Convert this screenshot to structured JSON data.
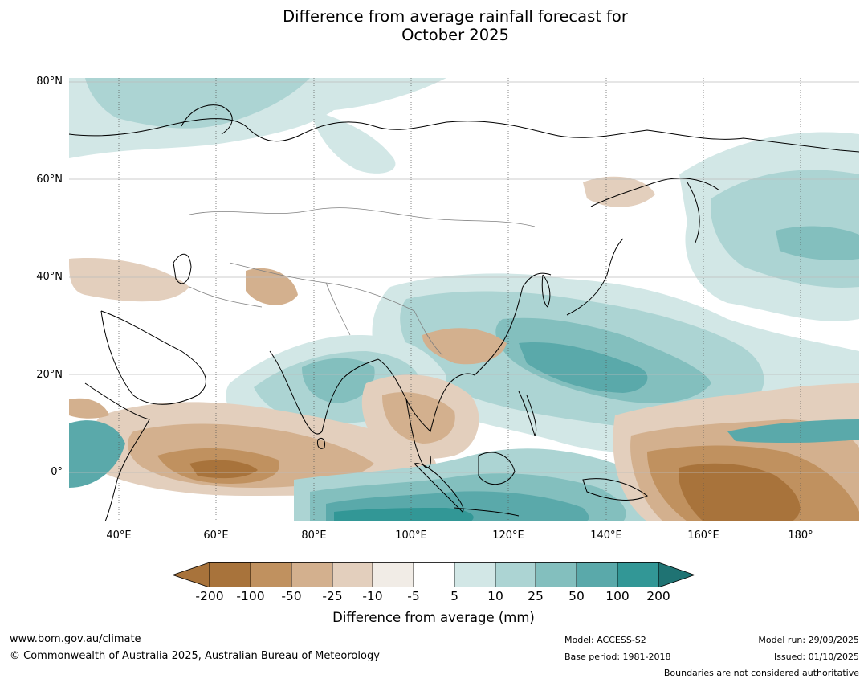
{
  "title_line1": "Difference from average rainfall forecast for",
  "title_line2": "October 2025",
  "map": {
    "lat_labels": [
      "80°N",
      "60°N",
      "40°N",
      "20°N",
      "0°"
    ],
    "lon_labels": [
      "40°E",
      "60°E",
      "80°E",
      "100°E",
      "120°E",
      "140°E",
      "160°E",
      "180°"
    ],
    "lon_range_deg": [
      30,
      192
    ],
    "lat_range_deg": [
      -10,
      81
    ],
    "palette": {
      "dry_extreme": "#8c5a2a",
      "dry_200": "#a8733b",
      "dry_100": "#c0915f",
      "dry_50": "#d3b08e",
      "dry_25": "#e3cfbd",
      "dry_10": "#f1ece6",
      "neutral": "#ffffff",
      "wet_10": "#d2e7e6",
      "wet_25": "#acd4d3",
      "wet_50": "#83bfbe",
      "wet_100": "#5aa9aa",
      "wet_200": "#329796",
      "wet_extreme": "#1f7373",
      "coast": "#000000",
      "border": "#808080",
      "grid": "#bdbdbd"
    }
  },
  "colorbar": {
    "ticks": [
      "-200",
      "-100",
      "-50",
      "-25",
      "-10",
      "-5",
      "5",
      "10",
      "25",
      "50",
      "100",
      "200"
    ],
    "label": "Difference from average (mm)"
  },
  "footer": {
    "url": "www.bom.gov.au/climate",
    "copyright": "© Commonwealth of Australia 2025, Australian Bureau of Meteorology",
    "model": "Model: ACCESS-S2",
    "base_period": "Base period: 1981-2018",
    "model_run": "Model run: 29/09/2025",
    "issued": "Issued: 01/10/2025",
    "boundaries_note": "Boundaries are not considered authoritative"
  }
}
